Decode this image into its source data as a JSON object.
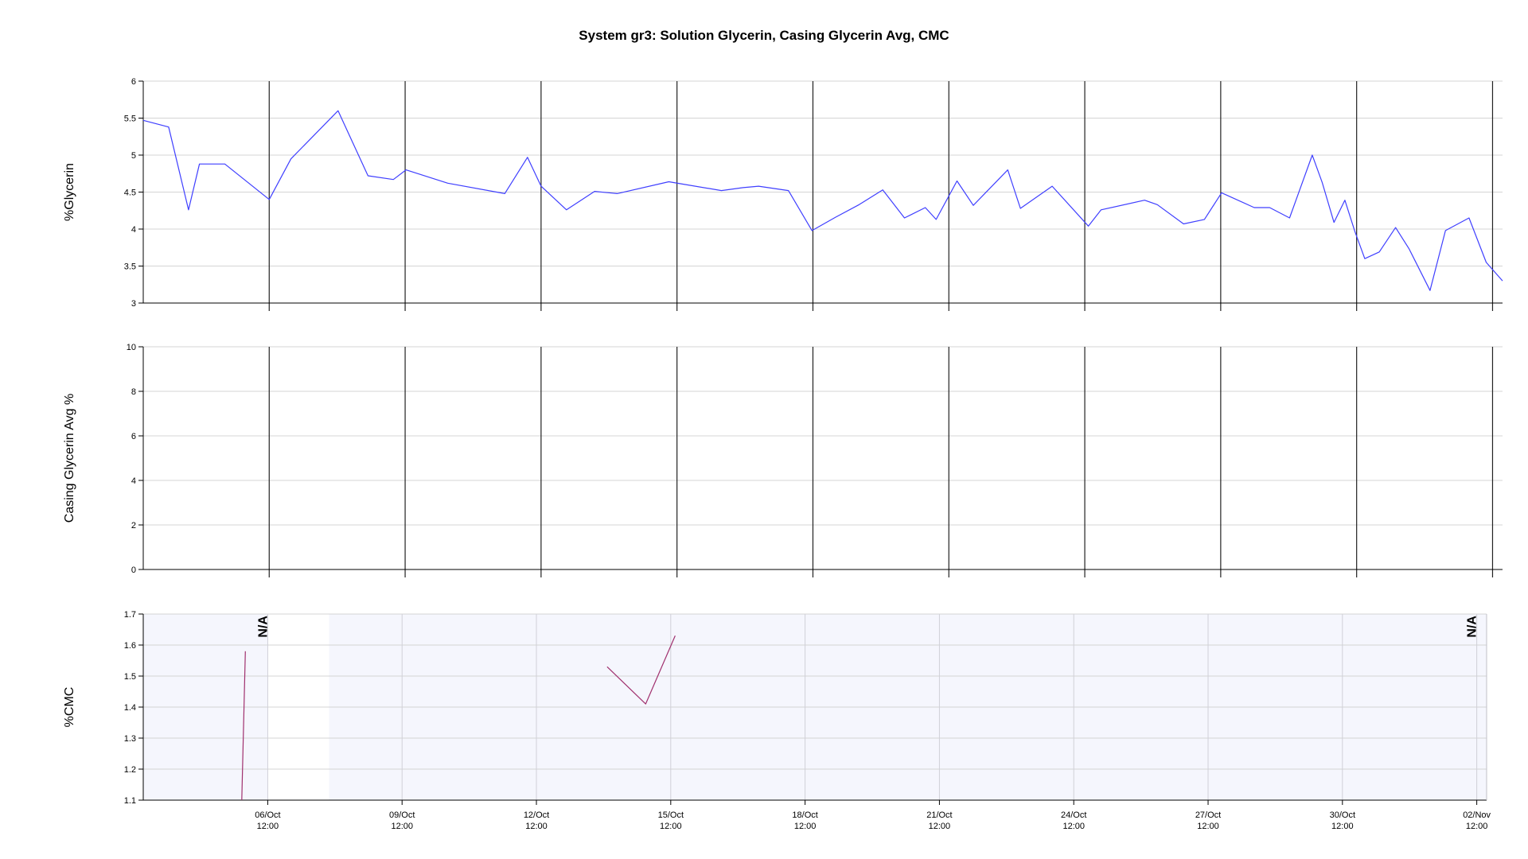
{
  "chart_data": {
    "title": "System gr3: Solution Glycerin, Casing Glycerin Avg, CMC",
    "x_axis": {
      "type": "time",
      "tick_labels": [
        {
          "day": 4.5,
          "date": "06/Oct",
          "time": "12:00"
        },
        {
          "day": 7.5,
          "date": "09/Oct",
          "time": "12:00"
        },
        {
          "day": 10.5,
          "date": "12/Oct",
          "time": "12:00"
        },
        {
          "day": 13.5,
          "date": "15/Oct",
          "time": "12:00"
        },
        {
          "day": 16.5,
          "date": "18/Oct",
          "time": "12:00"
        },
        {
          "day": 19.5,
          "date": "21/Oct",
          "time": "12:00"
        },
        {
          "day": 22.5,
          "date": "24/Oct",
          "time": "12:00"
        },
        {
          "day": 25.5,
          "date": "27/Oct",
          "time": "12:00"
        },
        {
          "day": 28.5,
          "date": "30/Oct",
          "time": "12:00"
        },
        {
          "day": 31.5,
          "date": "02/Nov",
          "time": "12:00"
        }
      ]
    },
    "panels": [
      {
        "type": "line",
        "ylabel": "%Glycerin",
        "ylim": [
          3,
          6
        ],
        "yticks": [
          3,
          3.5,
          4,
          4.5,
          5,
          5.5,
          6
        ],
        "xlim": [
          1.72,
          31.72
        ],
        "grid": "horizontal-light, vertical-dark",
        "background": "#ffffff",
        "color": "#3f3fff",
        "series": [
          {
            "x": [
              1.72,
              2.28,
              2.72,
              2.96,
              3.52,
              4.5,
              4.98,
              6.02,
              6.68,
              7.24,
              7.52,
              8.44,
              9.7,
              10.2,
              10.5,
              11.06,
              11.68,
              12.18,
              13.32,
              14.48,
              14.96,
              15.3,
              15.96,
              16.48,
              17.0,
              17.52,
              18.04,
              18.52,
              18.98,
              19.22,
              19.68,
              20.04,
              20.8,
              21.08,
              21.78,
              22.58,
              22.86,
              23.82,
              24.1,
              24.68,
              25.14,
              25.52,
              26.24,
              26.58,
              27.02,
              27.52,
              27.74,
              28.0,
              28.24,
              28.46,
              28.68,
              29.0,
              29.36,
              29.66,
              30.12,
              30.46,
              30.98,
              31.36,
              31.72
            ],
            "y": [
              5.47,
              5.38,
              4.26,
              4.88,
              4.88,
              4.4,
              4.95,
              5.6,
              4.72,
              4.67,
              4.8,
              4.62,
              4.48,
              4.97,
              4.58,
              4.26,
              4.51,
              4.48,
              4.64,
              4.52,
              4.56,
              4.58,
              4.52,
              3.98,
              4.16,
              4.33,
              4.53,
              4.15,
              4.29,
              4.13,
              4.65,
              4.32,
              4.8,
              4.28,
              4.58,
              4.04,
              4.26,
              4.39,
              4.33,
              4.07,
              4.13,
              4.49,
              4.29,
              4.29,
              4.15,
              5.0,
              4.63,
              4.09,
              4.39,
              3.97,
              3.6,
              3.69,
              4.02,
              3.73,
              3.17,
              3.98,
              4.15,
              3.55,
              3.3
            ]
          }
        ]
      },
      {
        "type": "line",
        "ylabel": "Casing Glycerin Avg %",
        "ylim": [
          0,
          10
        ],
        "yticks": [
          0,
          2,
          4,
          6,
          8,
          10
        ],
        "xlim": [
          1.72,
          31.72
        ],
        "grid": "horizontal-light, vertical-dark",
        "background": "#ffffff",
        "series": []
      },
      {
        "type": "line",
        "ylabel": "%CMC",
        "ylim": [
          1.1,
          1.7
        ],
        "yticks": [
          1.1,
          1.2,
          1.3,
          1.4,
          1.5,
          1.6,
          1.7
        ],
        "xlim": [
          1.72,
          31.72
        ],
        "grid": "both-light",
        "background": "#f5f6fd",
        "blank_band": [
          4.5,
          5.87
        ],
        "color": "#a0306e",
        "series": [
          {
            "x": [
              3.92,
              4.0
            ],
            "y": [
              1.1,
              1.58
            ]
          },
          {
            "x": [
              12.08,
              12.94,
              13.6
            ],
            "y": [
              1.53,
              1.41,
              1.63
            ]
          }
        ],
        "annotations": [
          {
            "text": "N/A",
            "day": 4.5
          },
          {
            "text": "N/A",
            "day": 31.5
          }
        ]
      }
    ]
  }
}
